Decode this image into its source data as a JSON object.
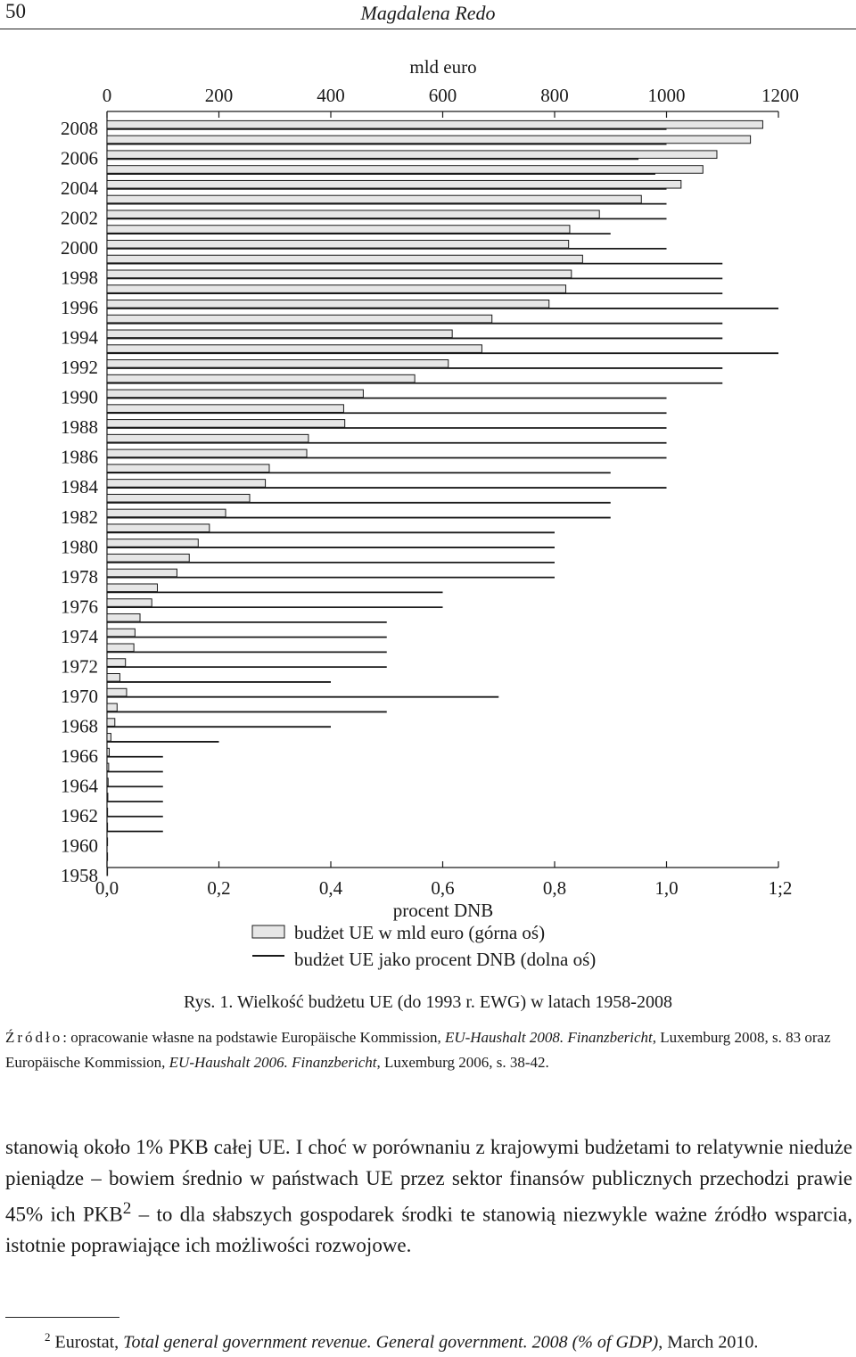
{
  "header": {
    "page_number": "50",
    "running_title": "Magdalena Redo"
  },
  "chart_data": {
    "type": "bar",
    "orientation": "horizontal",
    "top_axis": {
      "label": "mld euro",
      "min": 0,
      "max": 1200,
      "ticks": [
        "0",
        "200",
        "400",
        "600",
        "800",
        "1000",
        "1200"
      ]
    },
    "bottom_axis": {
      "label": "procent DNB",
      "min": 0,
      "max": 1.2,
      "ticks": [
        "0,0",
        "0,2",
        "0,4",
        "0,6",
        "0,8",
        "1,0",
        "1;2"
      ]
    },
    "year_labels": [
      "2008",
      "2006",
      "2004",
      "2002",
      "2000",
      "1998",
      "1996",
      "1994",
      "1992",
      "1990",
      "1988",
      "1986",
      "1984",
      "1982",
      "1980",
      "1978",
      "1976",
      "1974",
      "1972",
      "1970",
      "1968",
      "1966",
      "1964",
      "1962",
      "1960",
      "1958"
    ],
    "years": [
      2008,
      2007,
      2006,
      2005,
      2004,
      2003,
      2002,
      2001,
      2000,
      1999,
      1998,
      1997,
      1996,
      1995,
      1994,
      1993,
      1992,
      1991,
      1990,
      1989,
      1988,
      1987,
      1986,
      1985,
      1984,
      1983,
      1982,
      1981,
      1980,
      1979,
      1978,
      1977,
      1976,
      1975,
      1974,
      1973,
      1972,
      1971,
      1970,
      1969,
      1968,
      1967,
      1966,
      1965,
      1964,
      1963,
      1962,
      1961,
      1960,
      1959,
      1958
    ],
    "series": [
      {
        "name": "budżet UE w mld euro (górna oś)",
        "axis": "top",
        "values": [
          1172,
          1150,
          1090,
          1065,
          1026,
          955,
          880,
          827,
          825,
          850,
          830,
          820,
          790,
          688,
          617,
          670,
          610,
          550,
          458,
          423,
          425,
          360,
          357,
          290,
          283,
          255,
          212,
          183,
          163,
          147,
          125,
          90,
          80,
          59,
          50,
          48,
          33,
          23,
          35,
          18,
          14,
          7,
          4,
          3,
          2,
          1.5,
          1,
          0.5,
          0.2,
          0.1,
          0.05
        ]
      },
      {
        "name": "budżet UE jako procent DNB (dolna oś)",
        "axis": "bottom",
        "values": [
          1.0,
          1.0,
          0.95,
          0.98,
          1.0,
          1.0,
          1.0,
          0.9,
          1.0,
          1.1,
          1.1,
          1.1,
          1.2,
          1.1,
          1.1,
          1.2,
          1.1,
          1.1,
          1.0,
          1.0,
          1.0,
          1.0,
          1.0,
          0.9,
          1.0,
          0.9,
          0.9,
          0.8,
          0.8,
          0.8,
          0.8,
          0.6,
          0.6,
          0.5,
          0.5,
          0.5,
          0.5,
          0.4,
          0.7,
          0.5,
          0.4,
          0.2,
          0.1,
          0.1,
          0.1,
          0.1,
          0.1,
          0.1,
          0,
          0,
          0
        ]
      }
    ],
    "legend": [
      {
        "kind": "bar",
        "label": "budżet UE w mld euro (górna oś)"
      },
      {
        "kind": "line",
        "label": "budżet UE jako procent DNB (dolna oś)"
      }
    ],
    "legend_position": "bottom-center",
    "colors": {
      "bar_fill": "#e6e6e6",
      "stroke": "#1a1a1a"
    }
  },
  "caption": "Rys. 1. Wielkość budżetu UE (do 1993 r. EWG) w latach 1958-2008",
  "source": {
    "label": "Źródło",
    "text_a": ": opracowanie własne na podstawie Europäische Kommission, ",
    "italic_a": "EU-Haushalt 2008. Finanzbericht",
    "text_b": ", Luxemburg 2008, s. 83 oraz Europäische Kommission, ",
    "italic_b": "EU-Haushalt 2006. Finanzbericht",
    "text_c": ", Luxemburg 2006, s. 38-42."
  },
  "body": {
    "part1": "stanowią około 1% PKB całej UE. I choć w porównaniu z krajowymi budżetami to relatywnie nieduże pieniądze – bowiem średnio w państwach UE przez sektor finansów publicznych przechodzi prawie 45% ich PKB",
    "footnote_ref": "2",
    "part2": " – to dla słabszych gospodarek środki te stanowią niezwykle ważne źródło wsparcia, istotnie poprawiające ich możliwości rozwojowe."
  },
  "footnote": {
    "number": "2",
    "text_a": " Eurostat, ",
    "italic": "Total general government revenue. General government. 2008 (% of GDP)",
    "text_b": ", March 2010."
  }
}
